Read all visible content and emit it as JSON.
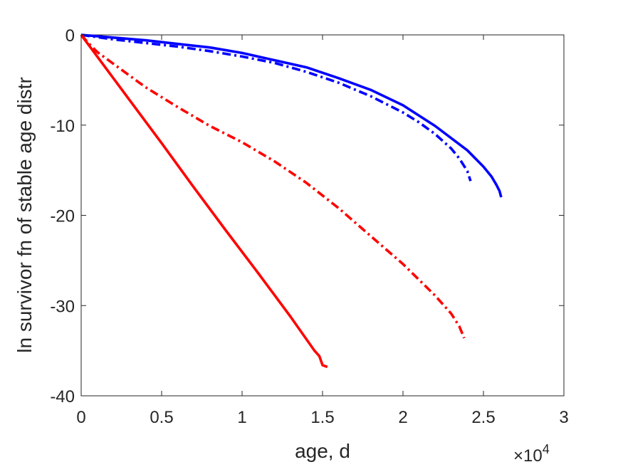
{
  "chart_data": {
    "type": "line",
    "title": "",
    "xlabel": "age, d",
    "ylabel": "ln survivor fn of stable age distr",
    "x_exponent_label": "×10",
    "x_exponent_power": "4",
    "xlim": [
      0,
      3
    ],
    "ylim": [
      -40,
      0
    ],
    "x_scale_factor": 10000,
    "xticks": [
      0,
      0.5,
      1,
      1.5,
      2,
      2.5,
      3
    ],
    "xtick_labels": [
      "0",
      "0.5",
      "1",
      "1.5",
      "2",
      "2.5",
      "3"
    ],
    "yticks": [
      0,
      -10,
      -20,
      -30,
      -40
    ],
    "ytick_labels": [
      "0",
      "-10",
      "-20",
      "-30",
      "-40"
    ],
    "grid": false,
    "legend": "none",
    "series": [
      {
        "color": "#0000ff",
        "style": "solid",
        "points": [
          [
            0,
            0
          ],
          [
            0.2,
            -0.3
          ],
          [
            0.4,
            -0.6
          ],
          [
            0.6,
            -1.0
          ],
          [
            0.8,
            -1.4
          ],
          [
            1.0,
            -2.0
          ],
          [
            1.2,
            -2.8
          ],
          [
            1.4,
            -3.6
          ],
          [
            1.6,
            -4.8
          ],
          [
            1.8,
            -6.1
          ],
          [
            2.0,
            -7.8
          ],
          [
            2.2,
            -10.1
          ],
          [
            2.4,
            -12.8
          ],
          [
            2.5,
            -14.6
          ],
          [
            2.55,
            -15.7
          ],
          [
            2.58,
            -16.6
          ],
          [
            2.6,
            -17.3
          ],
          [
            2.61,
            -18.0
          ]
        ]
      },
      {
        "color": "#0000ff",
        "style": "dashdot",
        "points": [
          [
            0,
            0
          ],
          [
            0.2,
            -0.5
          ],
          [
            0.4,
            -0.9
          ],
          [
            0.6,
            -1.3
          ],
          [
            0.8,
            -1.8
          ],
          [
            1.0,
            -2.4
          ],
          [
            1.2,
            -3.1
          ],
          [
            1.4,
            -4.1
          ],
          [
            1.6,
            -5.3
          ],
          [
            1.8,
            -6.8
          ],
          [
            2.0,
            -8.6
          ],
          [
            2.1,
            -9.7
          ],
          [
            2.2,
            -11.0
          ],
          [
            2.3,
            -12.6
          ],
          [
            2.35,
            -13.7
          ],
          [
            2.4,
            -15.1
          ],
          [
            2.42,
            -16.2
          ]
        ]
      },
      {
        "color": "#ff0000",
        "style": "dashdot",
        "points": [
          [
            0,
            0
          ],
          [
            0.05,
            -1.0
          ],
          [
            0.1,
            -1.9
          ],
          [
            0.2,
            -3.2
          ],
          [
            0.4,
            -5.8
          ],
          [
            0.6,
            -8.0
          ],
          [
            0.8,
            -10.1
          ],
          [
            1.0,
            -11.9
          ],
          [
            1.2,
            -14.0
          ],
          [
            1.4,
            -16.4
          ],
          [
            1.6,
            -19.2
          ],
          [
            1.8,
            -22.3
          ],
          [
            2.0,
            -25.4
          ],
          [
            2.2,
            -28.9
          ],
          [
            2.3,
            -30.9
          ],
          [
            2.35,
            -32.3
          ],
          [
            2.38,
            -33.6
          ]
        ]
      },
      {
        "color": "#ff0000",
        "style": "solid",
        "points": [
          [
            0,
            0
          ],
          [
            0.1,
            -2.4
          ],
          [
            0.3,
            -7.2
          ],
          [
            0.5,
            -12.0
          ],
          [
            0.7,
            -16.9
          ],
          [
            0.9,
            -21.7
          ],
          [
            1.1,
            -26.4
          ],
          [
            1.3,
            -31.2
          ],
          [
            1.45,
            -35.0
          ],
          [
            1.48,
            -35.6
          ],
          [
            1.5,
            -36.6
          ],
          [
            1.53,
            -36.8
          ]
        ]
      }
    ]
  }
}
